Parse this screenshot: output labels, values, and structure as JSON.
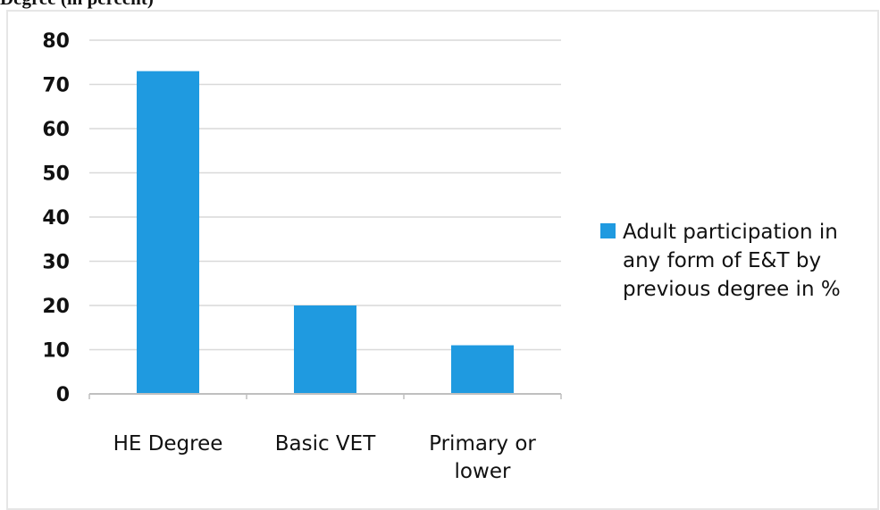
{
  "page": {
    "title": "Degree (in percent)"
  },
  "chart_data": {
    "type": "bar",
    "categories": [
      "HE Degree",
      "Basic VET",
      "Primary or lower"
    ],
    "category_label_lines": [
      [
        "HE Degree"
      ],
      [
        "Basic VET"
      ],
      [
        "Primary or",
        "lower"
      ]
    ],
    "series": [
      {
        "name": "Adult participation in any form of E&T by previous degree in %",
        "legend_lines": [
          "Adult participation in",
          "any form of E&T by",
          "previous degree in %"
        ],
        "values": [
          73,
          20,
          11
        ],
        "color": "#1f9ae0"
      }
    ],
    "ylim": [
      0,
      80
    ],
    "yticks": [
      0,
      10,
      20,
      30,
      40,
      50,
      60,
      70,
      80
    ],
    "grid": true,
    "legend_position": "right",
    "colors": {
      "gridline": "#d9d9d9",
      "axis": "#bfbfbf",
      "frame": "#e6e6e6"
    }
  }
}
